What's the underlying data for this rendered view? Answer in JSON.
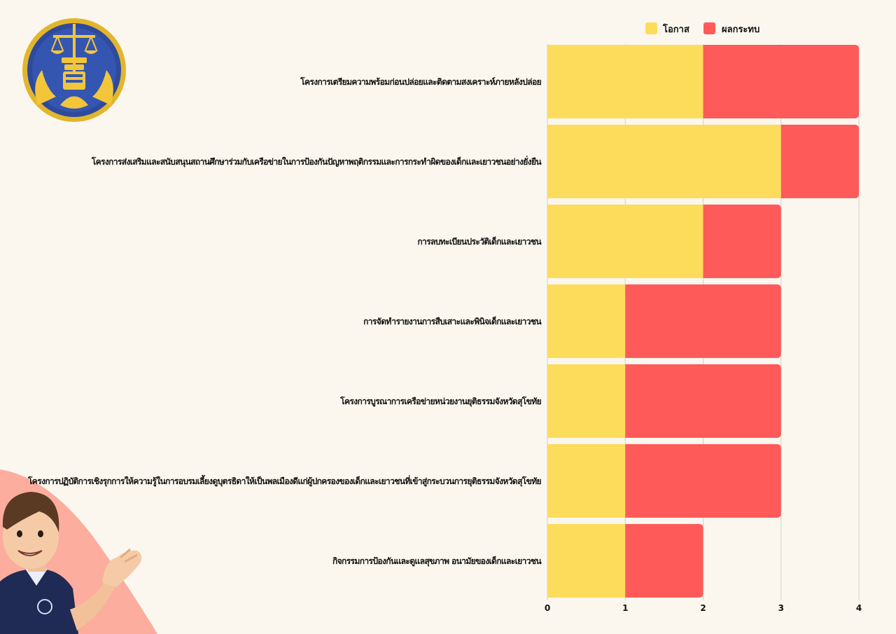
{
  "chart_data": {
    "type": "bar",
    "orientation": "horizontal",
    "stacked": true,
    "categories": [
      "โครงการเตรียมความพร้อมก่อนปล่อยและติดตามสงเคราะห์ภายหลังปล่อย",
      "โครงการส่งเสริมและสนับสนุนสถานศึกษาร่วมกับเครือข่ายในการป้องกันปัญหาพฤติกรรมและการกระทำผิดของเด็กและเยาวชนอย่างยั่งยืน",
      "การลบทะเบียนประวัติเด็กและเยาวชน",
      "การจัดทำรายงานการสืบเสาะและพินิจเด็กและเยาวชน",
      "โครงการบูรณาการเครือข่ายหน่วยงานยุติธรรมจังหวัดสุโขทัย",
      "โครงการปฏิบัติการเชิงรุกการให้ความรู้ในการอบรมเลี้ยงดูบุตรธิดาให้เป็นพลเมืองดีแก่ผู้ปกครองของเด็กและเยาวชนที่เข้าสู่กระบวนการยุติธรรมจังหวัดสุโขทัย",
      "กิจกรรมการป้องกันและดูแลสุขภาพ อนามัยของเด็กและเยาวชน"
    ],
    "series": [
      {
        "name": "โอกาส",
        "color": "#fddc5c",
        "values": [
          2,
          3,
          2,
          1,
          1,
          1,
          1
        ]
      },
      {
        "name": "ผลกระทบ",
        "color": "#fe5a5a",
        "values": [
          2,
          1,
          1,
          2,
          2,
          2,
          1
        ]
      }
    ],
    "xticks": [
      "0",
      "1",
      "2",
      "3",
      "4"
    ],
    "xlim": [
      0,
      4
    ],
    "grid": true,
    "legend": "top-right",
    "title": "",
    "xlabel": "",
    "ylabel": ""
  },
  "decorations": {
    "logo_icon": "justice-scales-seal",
    "mascot_icon": "waving-officer-mascot",
    "background_color": "#fbf7ef",
    "accent_color": "#fca08f"
  }
}
